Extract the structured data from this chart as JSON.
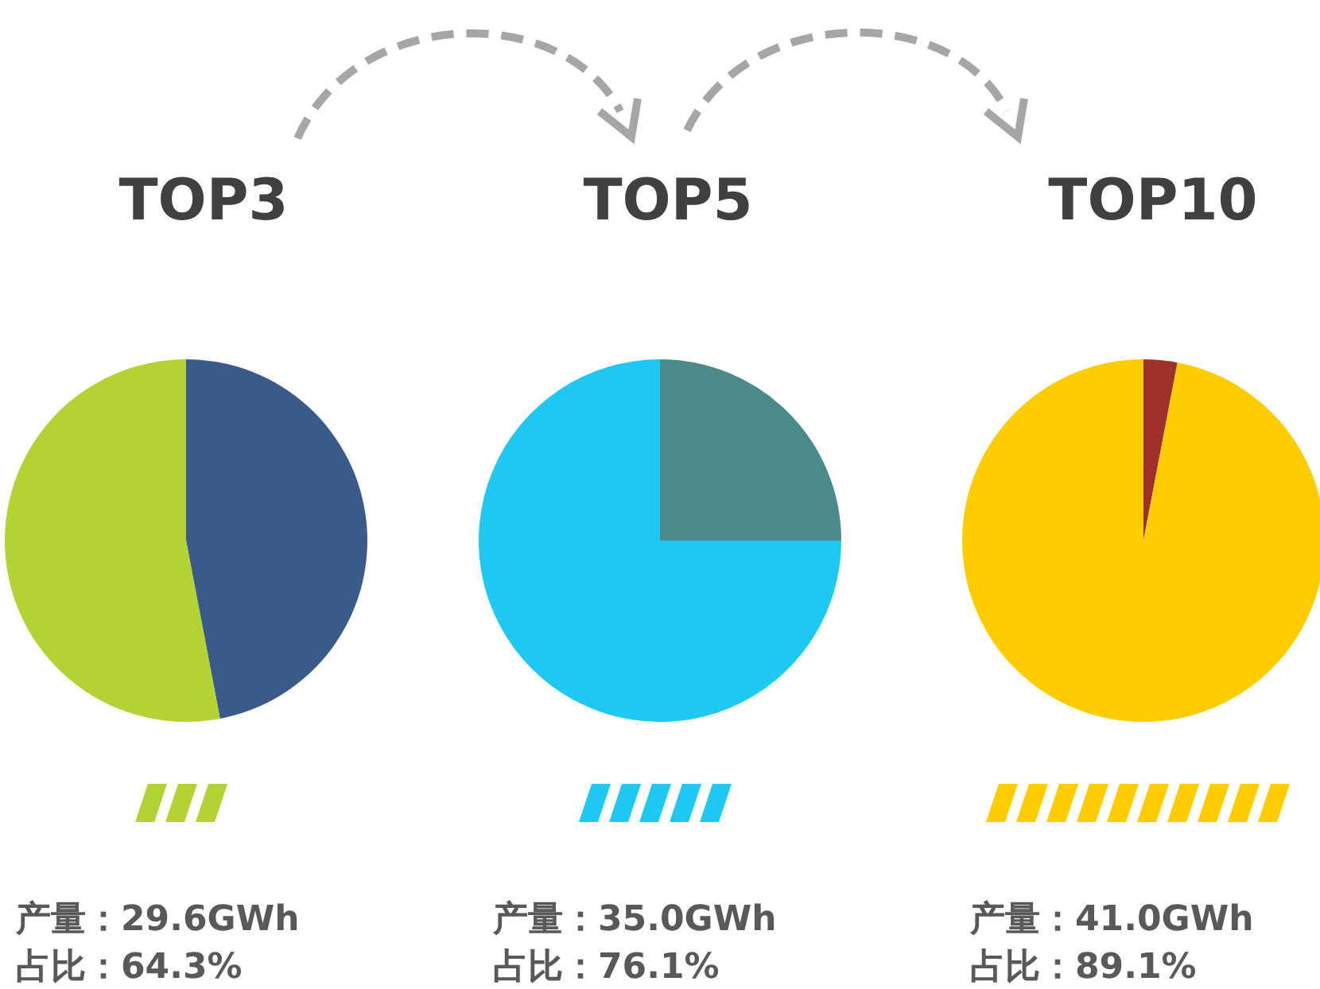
{
  "chart_data": [
    {
      "type": "pie",
      "title": "TOP3",
      "categories": [
        null,
        null
      ],
      "values": [
        47,
        53
      ],
      "colors": [
        "#3a5a8a",
        "#b3d335"
      ],
      "annotations": [
        "产量：29.6GWh",
        "占比：64.3%"
      ]
    },
    {
      "type": "pie",
      "title": "TOP5",
      "categories": [
        null,
        null
      ],
      "values": [
        25,
        75
      ],
      "colors": [
        "#4a8a8a",
        "#1fc8f0"
      ],
      "annotations": [
        "产量：35.0GWh",
        "占比：76.1%"
      ]
    },
    {
      "type": "pie",
      "title": "TOP10",
      "categories": [
        null,
        null
      ],
      "values": [
        3,
        97
      ],
      "colors": [
        "#a0302a",
        "#ffcc00"
      ],
      "annotations": [
        "产量：41.0GWh",
        "占比：89.1%"
      ]
    }
  ]
}
